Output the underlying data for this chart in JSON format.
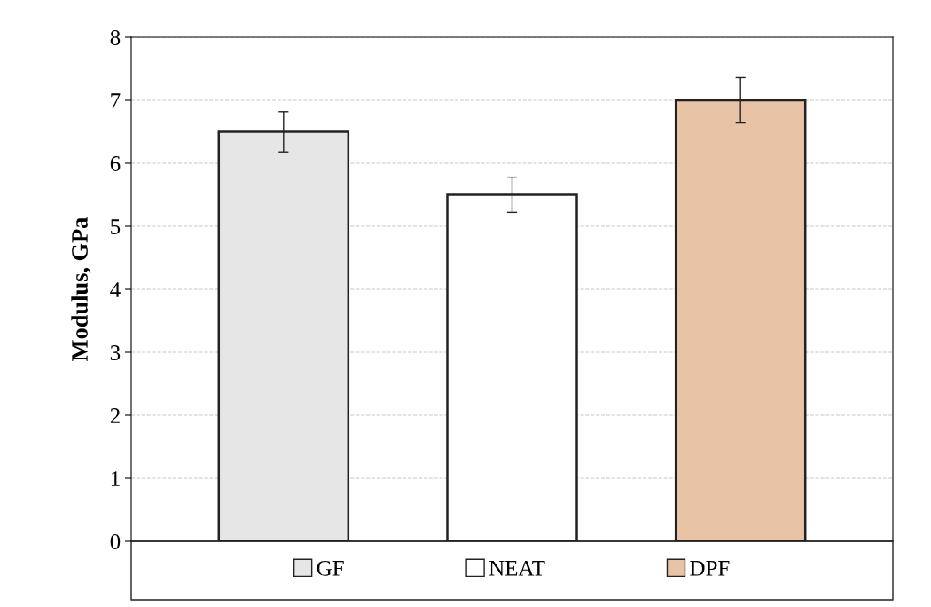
{
  "chart_data": {
    "type": "bar",
    "ylabel": "Modulus, GPa",
    "categories": [
      null
    ],
    "series": [
      {
        "name": "GF",
        "color": "#e6e6e6",
        "values": [
          6.5
        ],
        "errors": [
          0.32
        ]
      },
      {
        "name": "NEAT",
        "color": "#ffffff",
        "values": [
          5.5
        ],
        "errors": [
          0.28
        ]
      },
      {
        "name": "DPF",
        "color": "#e8c3a6",
        "values": [
          7.0
        ],
        "errors": [
          0.36
        ]
      }
    ],
    "ylim": [
      0,
      8
    ],
    "yticks": [
      0,
      1,
      2,
      3,
      4,
      5,
      6,
      7,
      8
    ],
    "grid": "y",
    "legend": "bottom"
  }
}
